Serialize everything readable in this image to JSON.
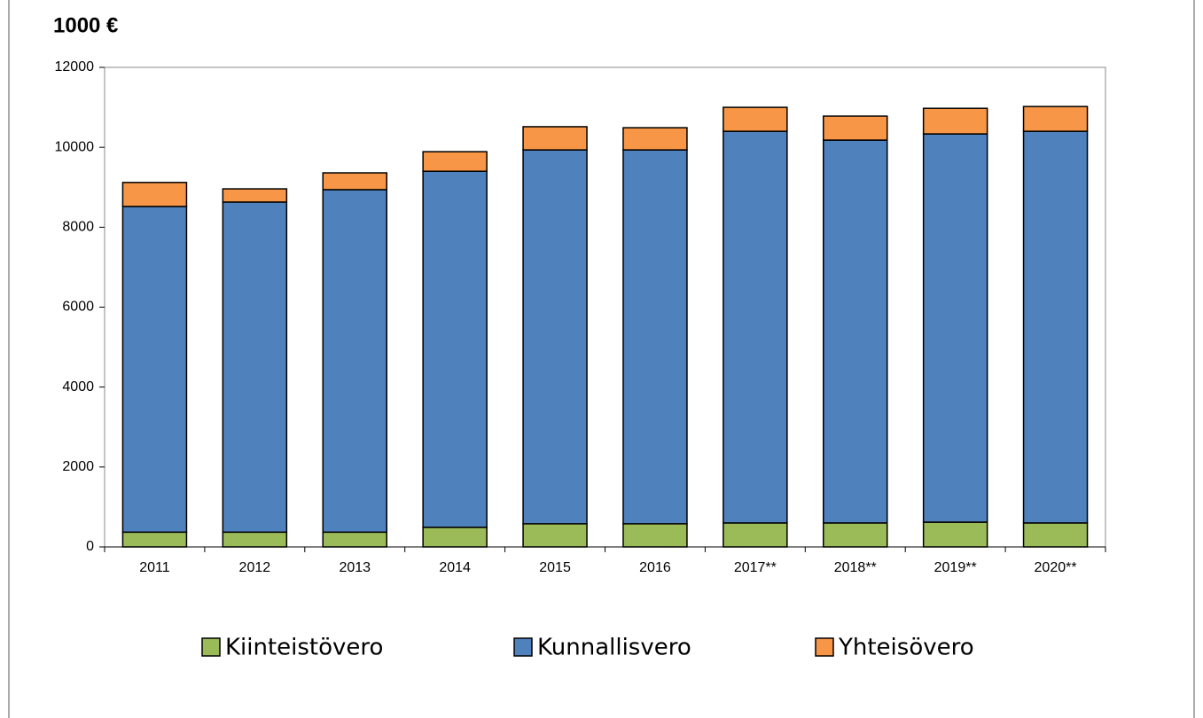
{
  "chart_data": {
    "type": "bar",
    "stacked": true,
    "title": "1000 €",
    "categories": [
      "2011",
      "2012",
      "2013",
      "2014",
      "2015",
      "2016",
      "2017**",
      "2018**",
      "2019**",
      "2020**"
    ],
    "series": [
      {
        "name": "Kiinteistövero",
        "color": "#9bbb59",
        "values": [
          370,
          370,
          370,
          490,
          580,
          580,
          600,
          600,
          620,
          600
        ]
      },
      {
        "name": "Kunnallisvero",
        "color": "#4f81bd",
        "values": [
          8150,
          8260,
          8570,
          8910,
          9355,
          9355,
          9800,
          9580,
          9715,
          9800
        ]
      },
      {
        "name": "Yhteisövero",
        "color": "#f79646",
        "values": [
          600,
          330,
          420,
          490,
          580,
          555,
          600,
          600,
          640,
          620
        ]
      }
    ],
    "ylim": [
      0,
      12000
    ],
    "yticks": [
      0,
      2000,
      4000,
      6000,
      8000,
      10000,
      12000
    ],
    "legend": "bottom"
  }
}
